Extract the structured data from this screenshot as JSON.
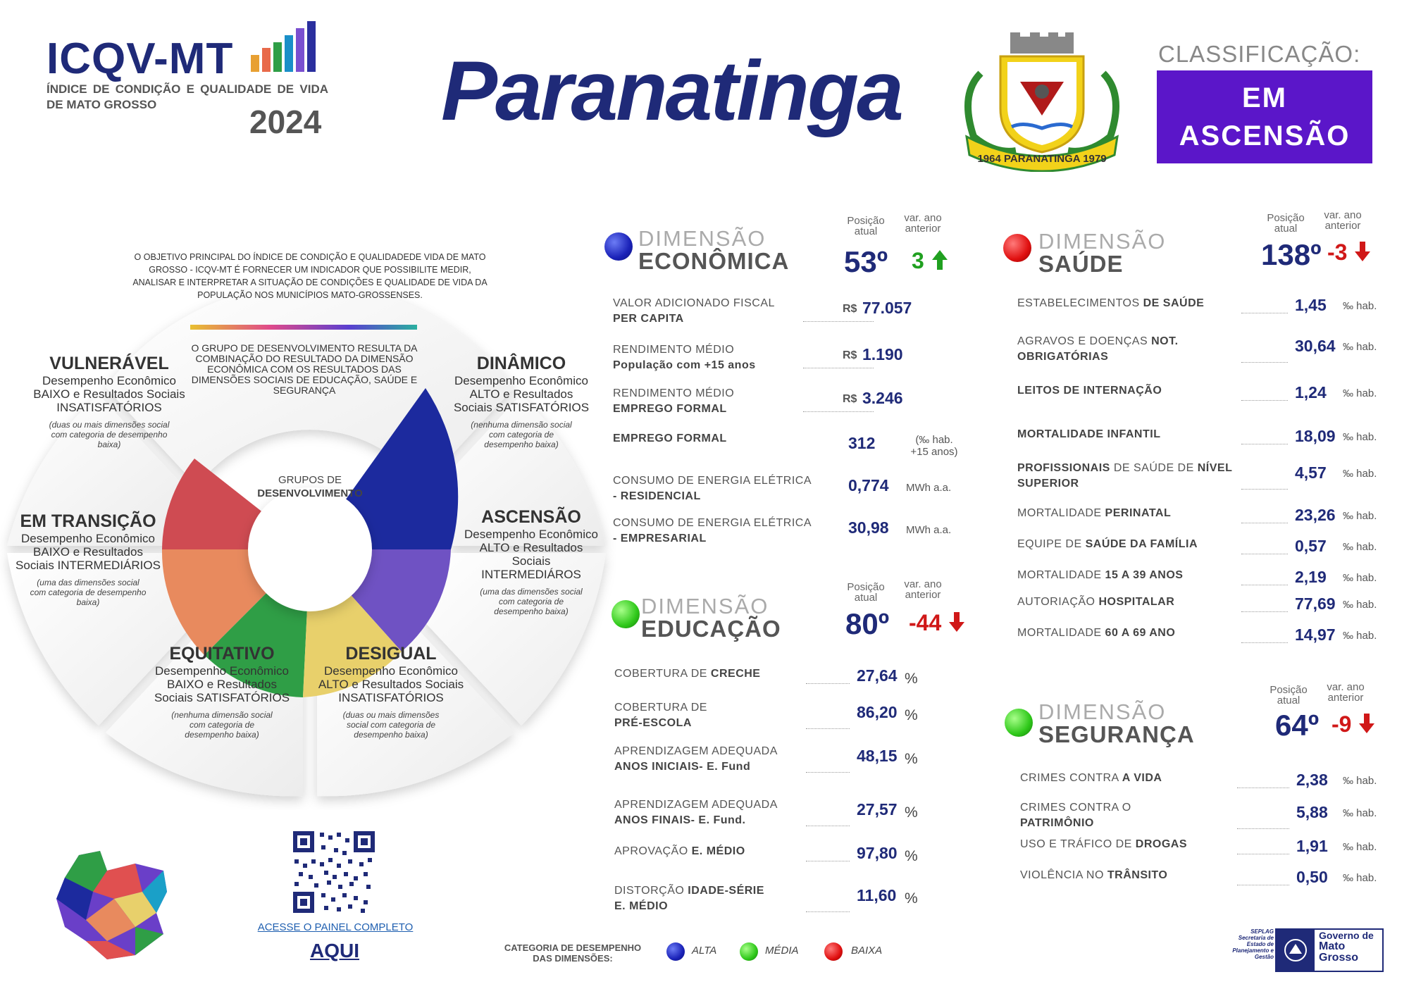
{
  "header": {
    "logo_title": "ICQV-MT",
    "logo_subtitle": "ÍNDICE DE CONDIÇÃO E QUALIDADE DE VIDA DE MATO GROSSO",
    "year": "2024",
    "city": "Paranatinga",
    "coat_of_arms_text": "1964 PARANATINGA 1979",
    "classification_label": "CLASSIFICAÇÃO:",
    "classification_line1": "EM",
    "classification_line2": "ASCENSÃO",
    "classification_color": "#5b16c9"
  },
  "wheel": {
    "objective": "O OBJETIVO PRINCIPAL DO ÍNDICE DE CONDIÇÃO E QUALIDADEDE VIDA DE MATO GROSSO - ICQV-MT É FORNECER UM INDICADOR QUE POSSIBILITE MEDIR, ANALISAR E INTERPRETAR A SITUAÇÃO DE CONDIÇÕES E QUALIDADE DE VIDA DA POPULAÇÃO NOS MUNICÍPIOS MATO-GROSSENSES.",
    "group_text": "O GRUPO DE DESENVOLVIMENTO RESULTA DA COMBINAÇÃO DO RESULTADO DA DIMENSÃO ECONÔMICA COM OS RESULTADOS DAS DIMENSÕES SOCIAIS DE EDUCAÇÃO, SAÚDE E SEGURANÇA",
    "center_line1": "GRUPOS DE",
    "center_line2": "DESENVOLVIMENTO",
    "groups": [
      {
        "title": "VULNERÁVEL",
        "desc": "Desempenho Econômico BAIXO e Resultados Sociais INSATISFATÓRIOS",
        "note": "(duas ou mais dimensões social com categoria de desempenho baixa)",
        "color": "#cf4b52"
      },
      {
        "title": "DINÂMICO",
        "desc": "Desempenho Econômico ALTO e Resultados Sociais SATISFATÓRIOS",
        "note": "(nenhuma dimensão social com categoria de desempenho baixa)",
        "color": "#1c2a9e"
      },
      {
        "title": "EM TRANSIÇÃO",
        "desc": "Desempenho Econômico BAIXO e Resultados Sociais INTERMEDIÁRIOS",
        "note": "(uma das dimensões social com categoria de desempenho baixa)",
        "color": "#e88a5e"
      },
      {
        "title": "ASCENSÃO",
        "desc": "Desempenho Econômico ALTO e Resultados Sociais INTERMEDIÁROS",
        "note": "(uma das dimensões social com categoria de desempenho baixa)",
        "color": "#6f52c3"
      },
      {
        "title": "EQUITATIVO",
        "desc": "Desempenho Econômico BAIXO e Resultados Sociais SATISFATÓRIOS",
        "note": "(nenhuma dimensão social com categoria de desempenho baixa)",
        "color": "#2f9e46"
      },
      {
        "title": "DESIGUAL",
        "desc": "Desempenho Econômico ALTO e Resultados Sociais INSATISFATÓRIOS",
        "note": "(duas ou mais dimensões social com categoria de desempenho baixa)",
        "color": "#e8d06b"
      }
    ]
  },
  "economica": {
    "top": "DIMENSÃO",
    "main": "ECONÔMICA",
    "pos_label": "Posição atual",
    "var_label": "var. ano anterior",
    "position": "53º",
    "variation": "3",
    "variation_arrow": "arrow-up",
    "indicators": [
      {
        "line1": "VALOR ADICIONADO FISCAL",
        "line2": "PER CAPITA",
        "currency": "R$",
        "value": "77.057",
        "unit": ""
      },
      {
        "line1": "RENDIMENTO MÉDIO",
        "line2": "População com +15 anos",
        "currency": "R$",
        "value": "1.190",
        "unit": ""
      },
      {
        "line1": "RENDIMENTO MÉDIO",
        "line2": "EMPREGO FORMAL",
        "currency": "R$",
        "value": "3.246",
        "unit": ""
      },
      {
        "line1": "EMPREGO FORMAL",
        "line2": "",
        "currency": "",
        "value": "312",
        "unit": "(‰ hab. +15 anos)"
      },
      {
        "line1": "CONSUMO DE ENERGIA ELÉTRICA",
        "line2": "- RESIDENCIAL",
        "currency": "",
        "value": "0,774",
        "unit": "MWh a.a."
      },
      {
        "line1": "CONSUMO DE ENERGIA ELÉTRICA",
        "line2": "- EMPRESARIAL",
        "currency": "",
        "value": "30,98",
        "unit": "MWh a.a."
      }
    ]
  },
  "saude": {
    "top": "DIMENSÃO",
    "main": "SAÚDE",
    "pos_label": "Posição atual",
    "var_label": "var. ano anterior",
    "position": "138º",
    "variation": "-3",
    "variation_arrow": "arrow-down",
    "indicators": [
      {
        "pre": "ESTABELECIMENTOS",
        "bold": "DE SAÚDE",
        "line2": "",
        "value": "1,45",
        "unit": "‰ hab."
      },
      {
        "pre": "AGRAVOS E DOENÇAS",
        "bold": "NOT.",
        "line2": "OBRIGATÓRIAS",
        "value": "30,64",
        "unit": "‰ hab."
      },
      {
        "pre": "",
        "bold": "LEITOS DE INTERNAÇÃO",
        "line2": "",
        "value": "1,24",
        "unit": "‰ hab."
      },
      {
        "pre": "",
        "bold": "MORTALIDADE INFANTIL",
        "line2": "",
        "value": "18,09",
        "unit": "‰ hab."
      },
      {
        "pre": "",
        "bold": "PROFISSIONAIS",
        "mid": "DE SAÚDE DE",
        "bold2": "NÍVEL",
        "line2": "SUPERIOR",
        "value": "4,57",
        "unit": "‰ hab."
      },
      {
        "pre": "MORTALIDADE",
        "bold": "PERINATAL",
        "line2": "",
        "value": "23,26",
        "unit": "‰ hab."
      },
      {
        "pre": "EQUIPE DE",
        "bold": "SAÚDE DA FAMÍLIA",
        "line2": "",
        "value": "0,57",
        "unit": "‰ hab."
      },
      {
        "pre": "MORTALIDADE",
        "bold": "15 A 39 ANOS",
        "line2": "",
        "value": "2,19",
        "unit": "‰ hab."
      },
      {
        "pre": "AUTORIAÇÃO",
        "bold": "HOSPITALAR",
        "line2": "",
        "value": "77,69",
        "unit": "‰ hab."
      },
      {
        "pre": "MORTALIDADE",
        "bold": "60 A 69 ANO",
        "line2": "",
        "value": "14,97",
        "unit": "‰ hab."
      }
    ]
  },
  "educacao": {
    "top": "DIMENSÃO",
    "main": "EDUCAÇÃO",
    "pos_label": "Posição atual",
    "var_label": "var. ano anterior",
    "position": "80º",
    "variation": "-44",
    "variation_arrow": "arrow-down",
    "indicators": [
      {
        "pre": "COBERTURA DE",
        "bold": "CRECHE",
        "line2": "",
        "value": "27,64",
        "unit": "%"
      },
      {
        "pre": "COBERTURA DE",
        "bold": "",
        "line2": "PRÉ-ESCOLA",
        "value": "86,20",
        "unit": "%"
      },
      {
        "pre": "APRENDIZAGEM ADEQUADA",
        "bold": "",
        "line2": "ANOS INICIAIS- E. Fund",
        "value": "48,15",
        "unit": "%"
      },
      {
        "pre": "APRENDIZAGEM ADEQUADA",
        "bold": "",
        "line2": "ANOS FINAIS- E. Fund.",
        "value": "27,57",
        "unit": "%"
      },
      {
        "pre": "APROVAÇÃO",
        "bold": "E. MÉDIO",
        "line2": "",
        "value": "97,80",
        "unit": "%"
      },
      {
        "pre": "DISTORÇÃO",
        "bold": "IDADE-SÉRIE",
        "line2": "E. MÉDIO",
        "value": "11,60",
        "unit": "%"
      }
    ]
  },
  "seguranca": {
    "top": "DIMENSÃO",
    "main": "SEGURANÇA",
    "pos_label": "Posição atual",
    "var_label": "var. ano anterior",
    "position": "64º",
    "variation": "-9",
    "variation_arrow": "arrow-down",
    "indicators": [
      {
        "pre": "CRIMES CONTRA",
        "bold": "A VIDA",
        "line2": "",
        "value": "2,38",
        "unit": "‰ hab."
      },
      {
        "pre": "CRIMES CONTRA O",
        "bold": "",
        "line2": "PATRIMÔNIO",
        "value": "5,88",
        "unit": "‰ hab."
      },
      {
        "pre": "USO E TRÁFICO DE",
        "bold": "DROGAS",
        "line2": "",
        "value": "1,91",
        "unit": "‰ hab."
      },
      {
        "pre": "VIOLÊNCIA NO",
        "bold": "TRÂNSITO",
        "line2": "",
        "value": "0,50",
        "unit": "‰ hab."
      }
    ]
  },
  "footer": {
    "access_text": "ACESSE O PAINEL COMPLETO",
    "aqui": "AQUI",
    "legend_title1": "CATEGORIA DE DESEMPENHO",
    "legend_title2": "DAS DIMENSÕES:",
    "legend": [
      {
        "label": "ALTA",
        "color": "#1a22b8"
      },
      {
        "label": "MÉDIA",
        "color": "#2fc81a"
      },
      {
        "label": "BAIXA",
        "color": "#e01010"
      }
    ],
    "seplag": "SEPLAG Secretaria de Estado de Planejamento e Gestão",
    "gov_line1": "Governo de",
    "gov_line2": "Mato",
    "gov_line3": "Grosso"
  }
}
